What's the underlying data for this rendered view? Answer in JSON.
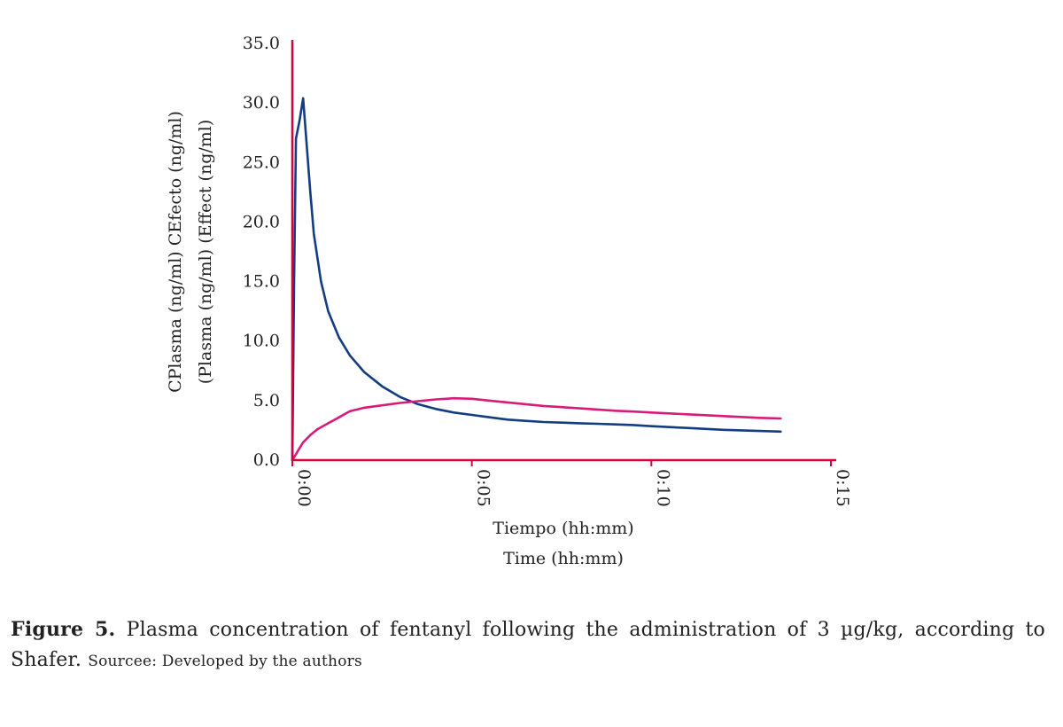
{
  "chart_data": {
    "type": "line",
    "ylabel_lines": [
      "CPlasma (ng/ml) CEfecto (ng/ml)",
      "(Plasma (ng/ml) (Effect (ng/ml)"
    ],
    "xlabel_lines": [
      "Tiempo (hh:mm)",
      "Time (hh:mm)"
    ],
    "ylim": [
      0,
      35
    ],
    "xlim": [
      0,
      15
    ],
    "y_ticks": [
      "0.0",
      "5.0",
      "10.0",
      "15.0",
      "20.0",
      "25.0",
      "30.0",
      "35.0"
    ],
    "x_ticks": [
      {
        "value": 0,
        "label": "0:00"
      },
      {
        "value": 5,
        "label": "0:05"
      },
      {
        "value": 10,
        "label": "0:10"
      },
      {
        "value": 15,
        "label": "0:15"
      }
    ],
    "grid": false,
    "axis_color": "#d6003c",
    "series": [
      {
        "color": "#143c80",
        "x": [
          0,
          0.05,
          0.1,
          0.2,
          0.3,
          0.4,
          0.5,
          0.6,
          0.8,
          1.0,
          1.3,
          1.6,
          2.0,
          2.5,
          3.0,
          3.5,
          4.0,
          4.5,
          5.0,
          5.5,
          6.0,
          6.5,
          7.0,
          7.5,
          8.0,
          8.5,
          9.0,
          9.5,
          10.0,
          11.0,
          12.0,
          13.0,
          13.6
        ],
        "y": [
          0,
          15,
          27,
          28.5,
          30.4,
          26.5,
          22.5,
          19.0,
          15.0,
          12.5,
          10.3,
          8.8,
          7.4,
          6.2,
          5.3,
          4.7,
          4.3,
          4.0,
          3.8,
          3.6,
          3.4,
          3.3,
          3.2,
          3.15,
          3.1,
          3.05,
          3.0,
          2.95,
          2.85,
          2.7,
          2.55,
          2.45,
          2.4
        ]
      },
      {
        "color": "#d81b7a",
        "x": [
          0,
          0.1,
          0.2,
          0.3,
          0.5,
          0.7,
          1.0,
          1.3,
          1.6,
          2.0,
          2.5,
          3.0,
          3.5,
          4.0,
          4.5,
          5.0,
          5.5,
          6.0,
          6.5,
          7.0,
          7.5,
          8.0,
          8.5,
          9.0,
          9.5,
          10.0,
          11.0,
          12.0,
          13.0,
          13.6
        ],
        "y": [
          0,
          0.5,
          1.0,
          1.5,
          2.1,
          2.6,
          3.1,
          3.6,
          4.1,
          4.4,
          4.6,
          4.8,
          4.95,
          5.1,
          5.2,
          5.15,
          5.0,
          4.85,
          4.7,
          4.55,
          4.45,
          4.35,
          4.25,
          4.15,
          4.08,
          4.0,
          3.85,
          3.7,
          3.55,
          3.5
        ]
      }
    ]
  },
  "caption": {
    "label": "Figure 5.",
    "text": "Plasma concentration of fentanyl following the administration of 3 µg/kg, according to Shafer.",
    "source": "Sourcee: Developed by the authors"
  }
}
